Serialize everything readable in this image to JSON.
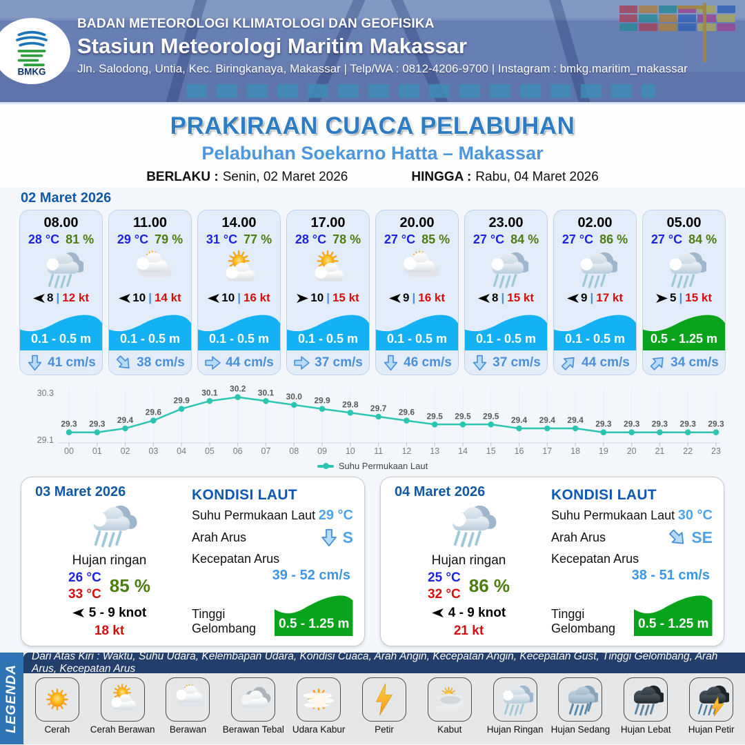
{
  "header": {
    "logo_label": "BMKG",
    "agency": "BADAN METEOROLOGI KLIMATOLOGI DAN GEOFISIKA",
    "station": "Stasiun Meteorologi Maritim Makassar",
    "address": "Jln. Salodong, Untia, Kec. Biringkanaya, Makassar | Telp/WA : 0812-4206-9700 | Instagram : bmkg.maritim_makassar"
  },
  "title": {
    "main": "PRAKIRAAN CUACA PELABUHAN",
    "subtitle": "Pelabuhan Soekarno Hatta – Makassar",
    "valid_from_label": "BERLAKU :",
    "valid_from": "Senin, 02 Maret 2026",
    "valid_to_label": "HINGGA :",
    "valid_to": "Rabu, 04 Maret 2026"
  },
  "forecast": {
    "date": "02 Maret 2026",
    "cards": [
      {
        "time": "08.00",
        "temp": "28 °C",
        "humidity": "81 %",
        "icon": "hujan-ringan",
        "wind_dir": "left",
        "wind_speed": "8",
        "gust": "12 kt",
        "wave": "0.1 - 0.5 m",
        "wave_color": "blue",
        "current_dir": "down",
        "current": "41 cm/s"
      },
      {
        "time": "11.00",
        "temp": "29 °C",
        "humidity": "79 %",
        "icon": "berawan",
        "wind_dir": "left",
        "wind_speed": "10",
        "gust": "14 kt",
        "wave": "0.1 - 0.5 m",
        "wave_color": "blue",
        "current_dir": "down-right",
        "current": "38 cm/s"
      },
      {
        "time": "14.00",
        "temp": "31 °C",
        "humidity": "77 %",
        "icon": "cerah-berawan",
        "wind_dir": "left",
        "wind_speed": "10",
        "gust": "16 kt",
        "wave": "0.1 - 0.5 m",
        "wave_color": "blue",
        "current_dir": "right",
        "current": "44 cm/s"
      },
      {
        "time": "17.00",
        "temp": "28 °C",
        "humidity": "78 %",
        "icon": "cerah-berawan",
        "wind_dir": "right",
        "wind_speed": "10",
        "gust": "15 kt",
        "wave": "0.1 - 0.5 m",
        "wave_color": "blue",
        "current_dir": "right",
        "current": "37 cm/s"
      },
      {
        "time": "20.00",
        "temp": "27 °C",
        "humidity": "85 %",
        "icon": "berawan",
        "wind_dir": "left",
        "wind_speed": "9",
        "gust": "16 kt",
        "wave": "0.1 - 0.5 m",
        "wave_color": "blue",
        "current_dir": "down",
        "current": "46 cm/s"
      },
      {
        "time": "23.00",
        "temp": "27 °C",
        "humidity": "84 %",
        "icon": "hujan-ringan",
        "wind_dir": "left",
        "wind_speed": "8",
        "gust": "15 kt",
        "wave": "0.1 - 0.5 m",
        "wave_color": "blue",
        "current_dir": "down",
        "current": "37 cm/s"
      },
      {
        "time": "02.00",
        "temp": "27 °C",
        "humidity": "86 %",
        "icon": "hujan-ringan",
        "wind_dir": "left",
        "wind_speed": "9",
        "gust": "17 kt",
        "wave": "0.1 - 0.5 m",
        "wave_color": "blue",
        "current_dir": "up-right",
        "current": "44 cm/s"
      },
      {
        "time": "05.00",
        "temp": "27 °C",
        "humidity": "84 %",
        "icon": "hujan-ringan",
        "wind_dir": "right",
        "wind_speed": "5",
        "gust": "15 kt",
        "wave": "0.5 - 1.25 m",
        "wave_color": "green",
        "current_dir": "up-right",
        "current": "34 cm/s"
      }
    ]
  },
  "chart_data": {
    "type": "line",
    "title": "Suhu Permukaan Laut",
    "x": [
      "00",
      "01",
      "02",
      "03",
      "04",
      "05",
      "06",
      "07",
      "08",
      "09",
      "10",
      "11",
      "12",
      "13",
      "14",
      "15",
      "16",
      "17",
      "18",
      "19",
      "20",
      "21",
      "22",
      "23"
    ],
    "values": [
      29.3,
      29.3,
      29.4,
      29.6,
      29.9,
      30.1,
      30.2,
      30.1,
      30.0,
      29.9,
      29.8,
      29.7,
      29.6,
      29.5,
      29.5,
      29.5,
      29.4,
      29.4,
      29.4,
      29.3,
      29.3,
      29.3,
      29.3,
      29.3
    ],
    "ylim": [
      29.1,
      30.3
    ],
    "ytick_labels": [
      "29.1",
      "30.3"
    ],
    "line_color": "#2cc5b2",
    "legend": [
      "Suhu Permukaan Laut"
    ],
    "legend_position": "bottom",
    "grid": true
  },
  "daily": [
    {
      "date": "03 Maret 2026",
      "icon": "hujan-ringan",
      "condition": "Hujan ringan",
      "temp_min": "26 °C",
      "temp_max": "33 °C",
      "humidity": "85 %",
      "wind_dir": "left",
      "wind_range": "5 - 9 knot",
      "gust": "18 kt",
      "sea": {
        "heading": "KONDISI LAUT",
        "sst_label": "Suhu Permukaan Laut",
        "sst": "29 °C",
        "current_dir_label": "Arah Arus",
        "current_arrow": "down",
        "current_dir": "S",
        "current_speed_label": "Kecepatan Arus",
        "current_speed": "39 - 52 cm/s",
        "wave_label": "Tinggi Gelombang",
        "wave": "0.5 - 1.25 m"
      }
    },
    {
      "date": "04 Maret 2026",
      "icon": "hujan-ringan",
      "condition": "Hujan ringan",
      "temp_min": "25 °C",
      "temp_max": "32 °C",
      "humidity": "86 %",
      "wind_dir": "left",
      "wind_range": "4 - 9 knot",
      "gust": "21 kt",
      "sea": {
        "heading": "KONDISI LAUT",
        "sst_label": "Suhu Permukaan Laut",
        "sst": "30 °C",
        "current_dir_label": "Arah Arus",
        "current_arrow": "down-right",
        "current_dir": "SE",
        "current_speed_label": "Kecepatan Arus",
        "current_speed": "38 - 51 cm/s",
        "wave_label": "Tinggi Gelombang",
        "wave": "0.5 - 1.25 m"
      }
    }
  ],
  "legend": {
    "title": "LEGENDA",
    "description": "Dari Atas Kiri : Waktu, Suhu Udara, Kelembapan Udara, Kondisi Cuaca, Arah Angin, Kecepatan Angin, Kecepatan Gust, Tinggi Gelombang, Arah Arus, Kecepatan Arus",
    "items": [
      {
        "label": "Cerah",
        "icon": "cerah"
      },
      {
        "label": "Cerah Berawan",
        "icon": "cerah-berawan"
      },
      {
        "label": "Berawan",
        "icon": "berawan"
      },
      {
        "label": "Berawan Tebal",
        "icon": "berawan-tebal"
      },
      {
        "label": "Udara Kabur",
        "icon": "udara-kabur"
      },
      {
        "label": "Petir",
        "icon": "petir"
      },
      {
        "label": "Kabut",
        "icon": "kabut"
      },
      {
        "label": "Hujan Ringan",
        "icon": "hujan-ringan"
      },
      {
        "label": "Hujan Sedang",
        "icon": "hujan-sedang"
      },
      {
        "label": "Hujan Lebat",
        "icon": "hujan-lebat"
      },
      {
        "label": "Hujan Petir",
        "icon": "hujan-petir"
      }
    ]
  },
  "colors": {
    "wave_blue": "#14b1f4",
    "wave_green": "#0aa41c",
    "temp_blue": "#1d23e0",
    "humidity_green": "#4d7c11",
    "gust_red": "#d40f0f",
    "accent_blue": "#1159a6",
    "value_blue": "#4da3ec",
    "chart_teal": "#2cc5b2",
    "container_palette": [
      "#e84a4a",
      "#f5a623",
      "#2bb3a3",
      "#d94f9e",
      "#f0e24a",
      "#3b78d8",
      "#e84a4a",
      "#2bb3a3",
      "#f5a623",
      "#3b78d8",
      "#d94f9e",
      "#f0e24a",
      "#2bb3a3",
      "#e84a4a",
      "#f5a623",
      "#3b78d8",
      "#f0e24a",
      "#d94f9e"
    ]
  }
}
